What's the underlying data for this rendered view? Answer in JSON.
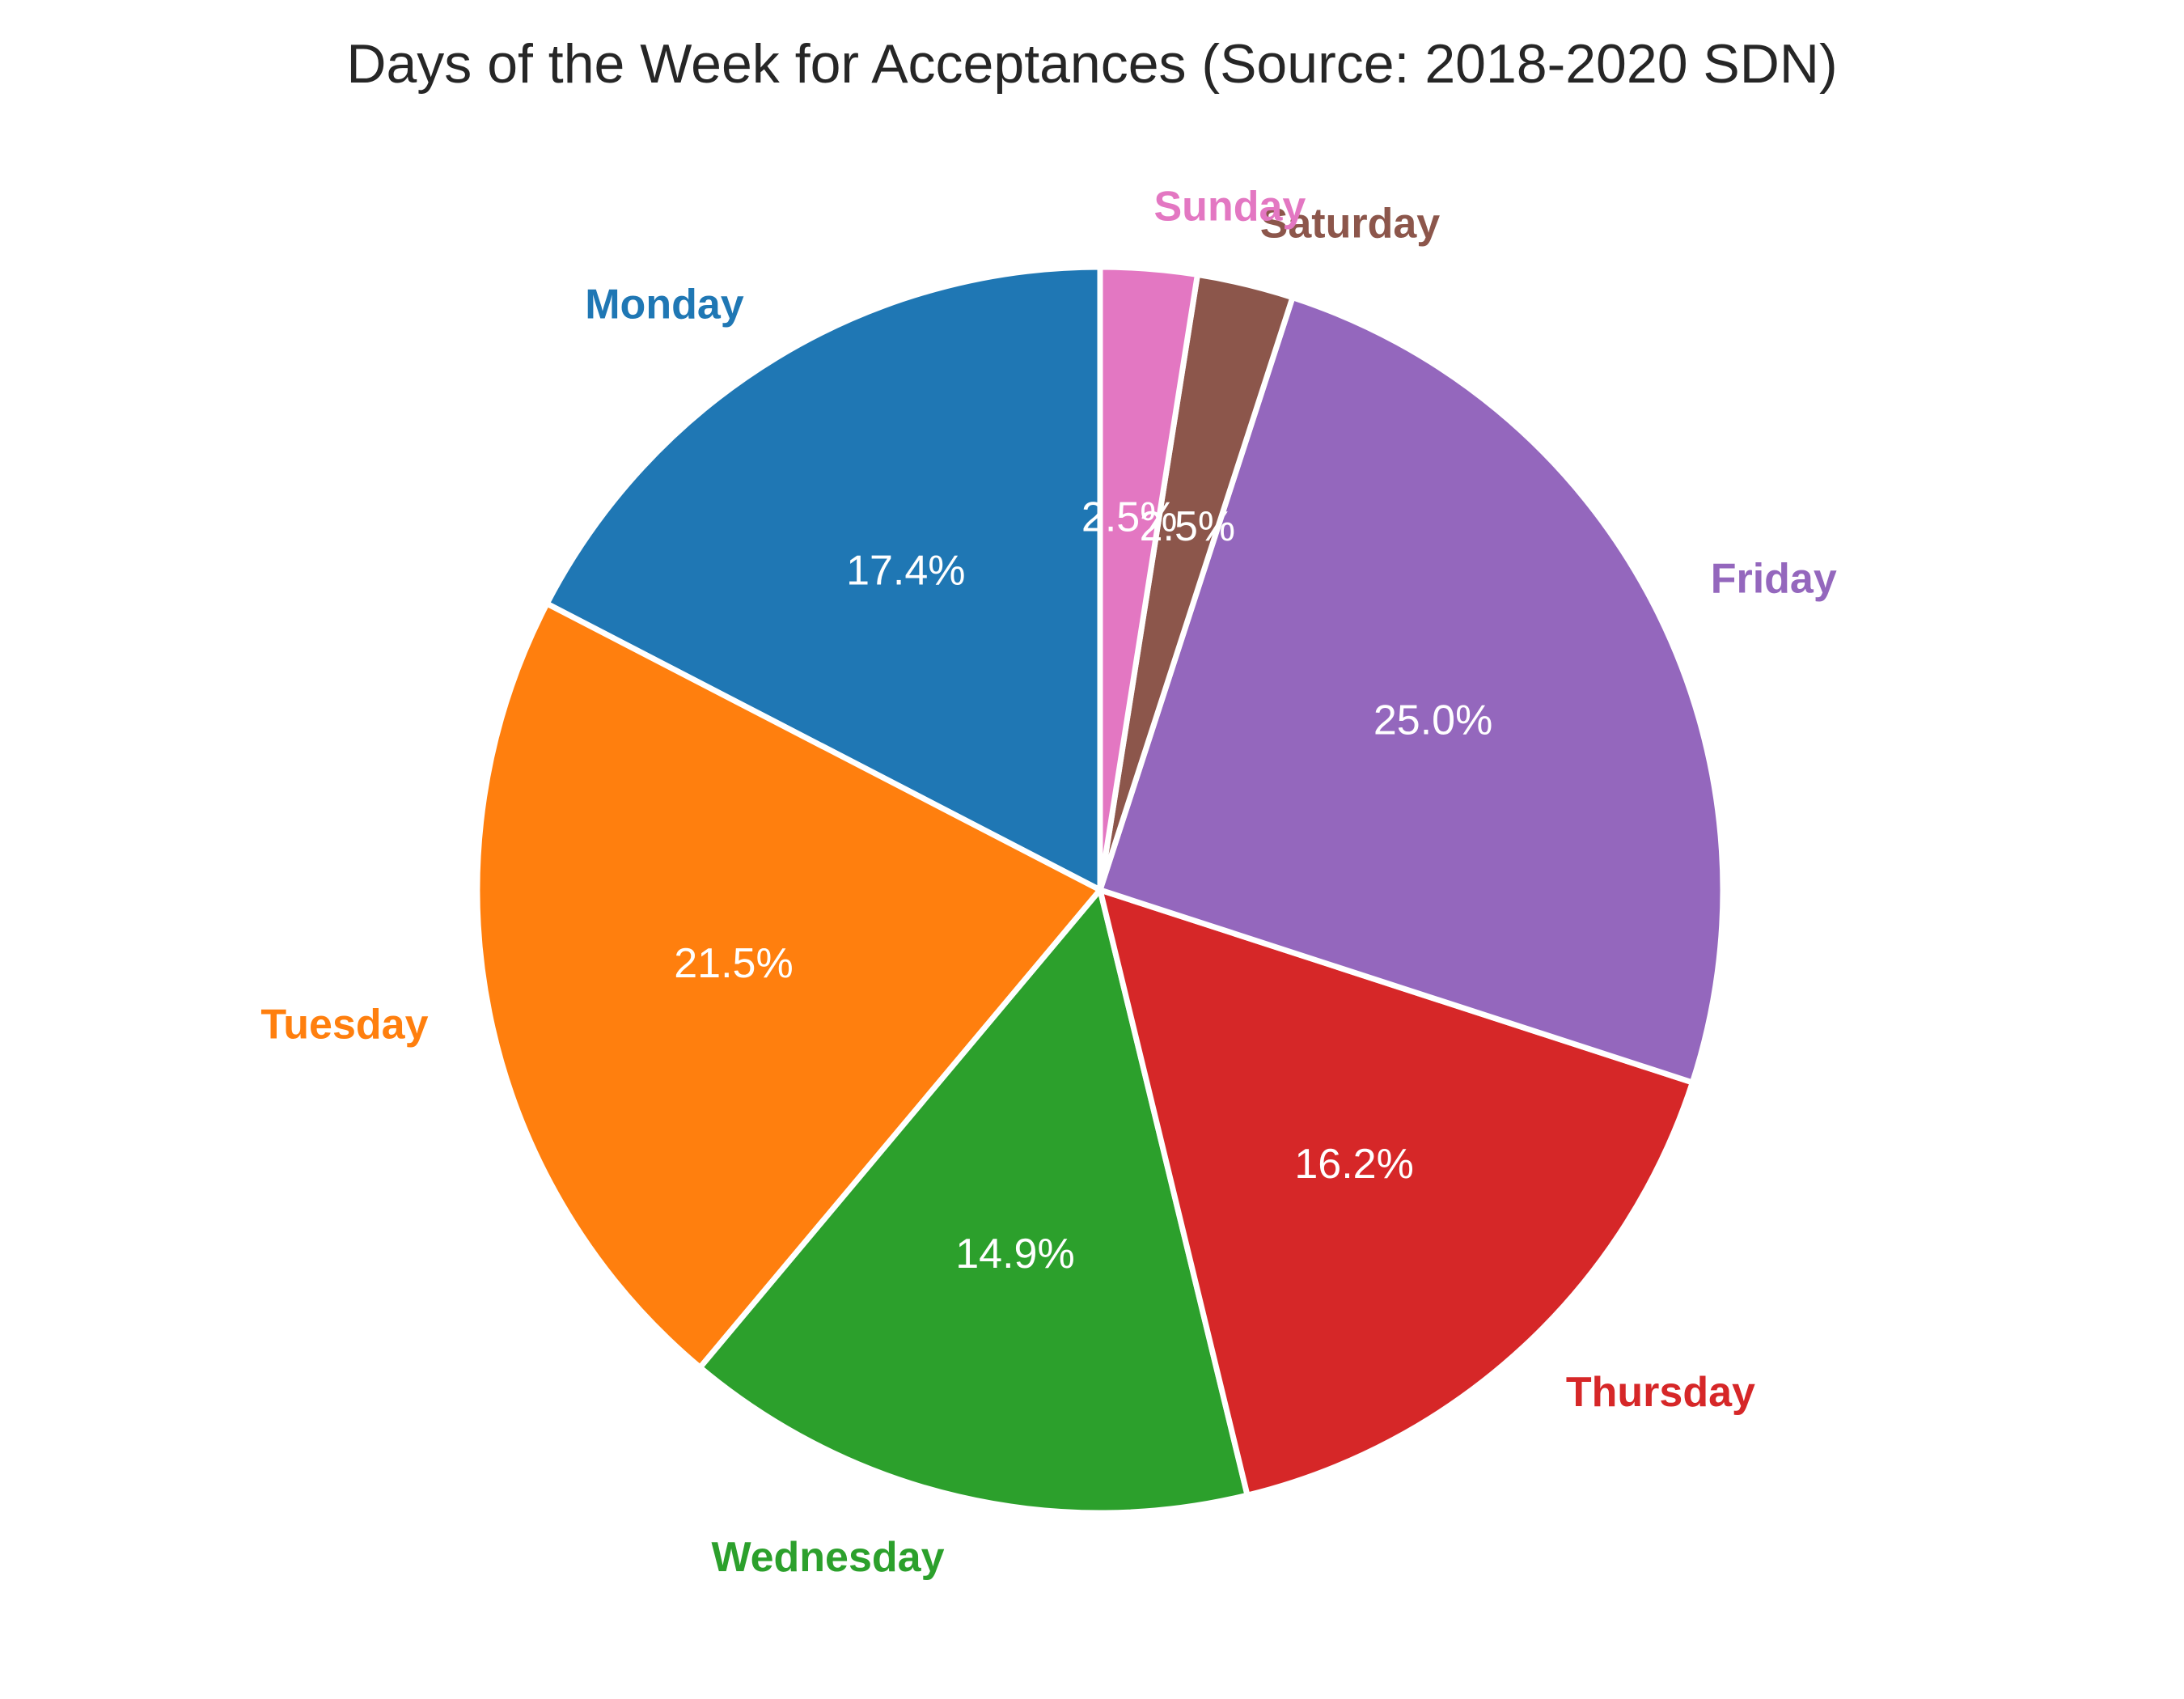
{
  "chart_data": {
    "type": "pie",
    "title": "Days of the Week for Acceptances (Source: 2018-2020 SDN)",
    "start_angle_deg": 90,
    "direction": "counterclockwise",
    "slices": [
      {
        "label": "Monday",
        "value": 17.4,
        "pct_label": "17.4%",
        "color": "#1f77b4"
      },
      {
        "label": "Tuesday",
        "value": 21.5,
        "pct_label": "21.5%",
        "color": "#ff7f0e"
      },
      {
        "label": "Wednesday",
        "value": 14.9,
        "pct_label": "14.9%",
        "color": "#2ca02c"
      },
      {
        "label": "Thursday",
        "value": 16.2,
        "pct_label": "16.2%",
        "color": "#d62728"
      },
      {
        "label": "Friday",
        "value": 25.0,
        "pct_label": "25.0%",
        "color": "#9467bd"
      },
      {
        "label": "Saturday",
        "value": 2.5,
        "pct_label": "2.5%",
        "color": "#8c564b"
      },
      {
        "label": "Sunday",
        "value": 2.5,
        "pct_label": "2.5%",
        "color": "#e377c2"
      }
    ]
  }
}
